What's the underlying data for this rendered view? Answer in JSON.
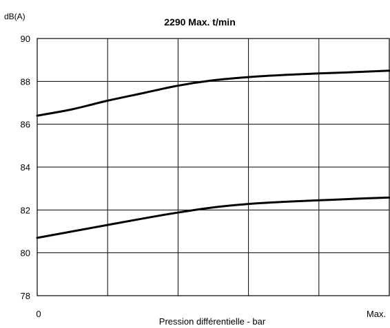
{
  "chart_data": {
    "type": "line",
    "title": "2290 Max. t/min",
    "ylabel": "dB(A)",
    "xlabel": "Pression différentielle - bar",
    "x_tick_labels": [
      "0",
      "Max."
    ],
    "x_grid_count": 5,
    "ylim": [
      78,
      90
    ],
    "y_ticks": [
      78,
      80,
      82,
      84,
      86,
      88,
      90
    ],
    "grid": true,
    "legend": "none",
    "series": [
      {
        "x": [
          0,
          0.1,
          0.2,
          0.3,
          0.4,
          0.5,
          0.6,
          0.7,
          0.8,
          0.9,
          1.0
        ],
        "values": [
          86.4,
          86.7,
          87.1,
          87.45,
          87.8,
          88.05,
          88.2,
          88.3,
          88.37,
          88.43,
          88.5
        ]
      },
      {
        "x": [
          0,
          0.1,
          0.2,
          0.3,
          0.4,
          0.5,
          0.6,
          0.7,
          0.8,
          0.9,
          1.0
        ],
        "values": [
          80.7,
          81.0,
          81.3,
          81.6,
          81.88,
          82.12,
          82.28,
          82.38,
          82.45,
          82.52,
          82.58
        ]
      }
    ]
  }
}
